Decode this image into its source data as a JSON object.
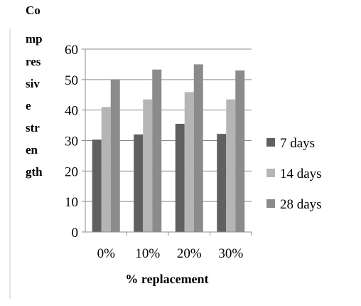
{
  "chart_data": {
    "type": "bar",
    "title": "",
    "xlabel": "% replacement",
    "ylabel": "Compressive strength",
    "ylabel_lines": [
      "Co",
      "mp",
      "res",
      "siv",
      "e",
      "str",
      "en",
      "gth"
    ],
    "categories": [
      "0%",
      "10%",
      "20%",
      "30%"
    ],
    "yticks": [
      "0",
      "10",
      "20",
      "30",
      "40",
      "50",
      "60"
    ],
    "ylim": [
      0,
      60
    ],
    "grid": true,
    "legend_position": "right",
    "series": [
      {
        "name": "7 days",
        "color": "#606060",
        "values": [
          30.3,
          32.0,
          35.5,
          32.2
        ]
      },
      {
        "name": "14 days",
        "color": "#b5b5b5",
        "values": [
          41.0,
          43.5,
          45.9,
          43.5
        ]
      },
      {
        "name": "28 days",
        "color": "#8b8b8b",
        "values": [
          50.0,
          53.3,
          55.0,
          53.0
        ]
      }
    ]
  }
}
